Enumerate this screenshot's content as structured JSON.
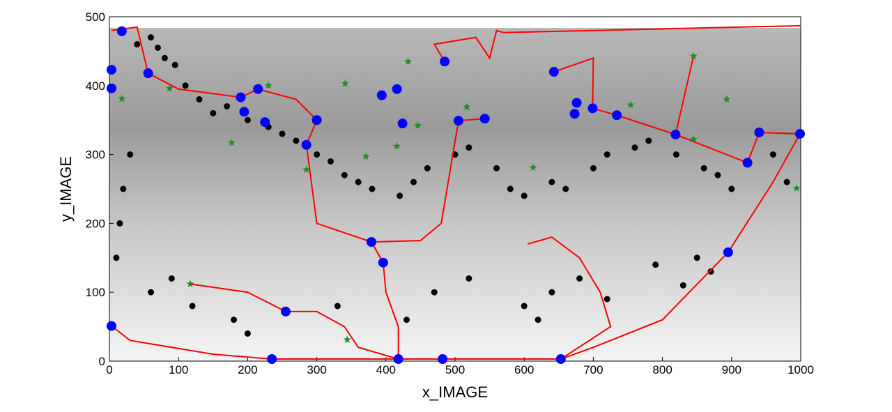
{
  "chart_data": {
    "type": "scatter",
    "xlabel": "x_IMAGE",
    "ylabel": "y_IMAGE",
    "xlim": [
      0,
      1000
    ],
    "ylim": [
      0,
      500
    ],
    "xticks": [
      0,
      100,
      200,
      300,
      400,
      500,
      600,
      700,
      800,
      900,
      1000
    ],
    "yticks": [
      0,
      100,
      200,
      300,
      400,
      500
    ],
    "series": [
      {
        "color": "#000000",
        "marker": "dot",
        "x": [
          40,
          60,
          70,
          80,
          95,
          110,
          130,
          150,
          170,
          200,
          230,
          250,
          270,
          300,
          320,
          340,
          360,
          380,
          420,
          440,
          460,
          500,
          520,
          560,
          580,
          600,
          640,
          660,
          700,
          720,
          760,
          780,
          820,
          860,
          880,
          900,
          960,
          980,
          30,
          20,
          15,
          10,
          60,
          90,
          120,
          180,
          200,
          330,
          430,
          470,
          520,
          600,
          620,
          640,
          680,
          720,
          790,
          830,
          850,
          870
        ],
        "y": [
          460,
          470,
          455,
          440,
          430,
          400,
          380,
          360,
          370,
          350,
          340,
          330,
          320,
          300,
          290,
          270,
          260,
          250,
          240,
          260,
          280,
          300,
          310,
          280,
          250,
          240,
          260,
          250,
          280,
          300,
          310,
          320,
          300,
          280,
          270,
          250,
          300,
          260,
          300,
          250,
          200,
          150,
          100,
          120,
          80,
          60,
          40,
          80,
          60,
          100,
          120,
          80,
          60,
          100,
          120,
          90,
          140,
          110,
          150,
          130
        ]
      },
      {
        "color": "#ff0000",
        "line": true,
        "x": [
          3,
          30,
          150,
          235,
          418,
          482,
          653,
          700,
          800,
          895,
          960,
          999
        ],
        "y": [
          51,
          30,
          10,
          3,
          3,
          3,
          3,
          20,
          60,
          158,
          260,
          330
        ]
      },
      {
        "color": "#ff0000",
        "line": true,
        "x": [
          117,
          200,
          255,
          300,
          340,
          360,
          418
        ],
        "y": [
          112,
          100,
          72,
          72,
          50,
          20,
          3
        ]
      },
      {
        "color": "#ff0000",
        "line": true,
        "x": [
          570,
          1000
        ],
        "y": [
          477,
          487
        ]
      },
      {
        "color": "#ff0000",
        "line": true,
        "x": [
          3,
          40,
          56,
          100,
          190,
          215,
          270,
          300,
          285,
          300,
          379,
          396,
          400,
          418,
          418
        ],
        "y": [
          480,
          485,
          418,
          395,
          383,
          395,
          380,
          350,
          314,
          200,
          173,
          143,
          100,
          50,
          3
        ]
      },
      {
        "color": "#ff0000",
        "line": true,
        "x": [
          379,
          450,
          480,
          505,
          543
        ],
        "y": [
          173,
          175,
          200,
          349,
          352
        ]
      },
      {
        "color": "#ff0000",
        "line": true,
        "x": [
          605,
          640,
          680,
          710,
          725,
          653
        ],
        "y": [
          170,
          180,
          150,
          100,
          50,
          3
        ]
      },
      {
        "color": "#ff0000",
        "line": true,
        "x": [
          485,
          470,
          530,
          550,
          560,
          570
        ],
        "y": [
          435,
          460,
          470,
          440,
          480,
          477
        ]
      },
      {
        "color": "#ff0000",
        "line": true,
        "x": [
          643,
          700,
          699,
          734,
          819,
          845
        ],
        "y": [
          420,
          440,
          367,
          357,
          329,
          443
        ]
      },
      {
        "color": "#ff0000",
        "line": true,
        "x": [
          819,
          923,
          940,
          999
        ],
        "y": [
          329,
          288,
          332,
          330
        ]
      },
      {
        "color": "#0000ff",
        "marker": "circle",
        "x": [
          18,
          3,
          3,
          56,
          190,
          215,
          195,
          225,
          300,
          285,
          394,
          416,
          424,
          485,
          505,
          543,
          643,
          676,
          673,
          699,
          734,
          819,
          940,
          923,
          999,
          895,
          379,
          396,
          255,
          3,
          235,
          418,
          482,
          653
        ],
        "y": [
          479,
          423,
          396,
          418,
          383,
          395,
          362,
          347,
          350,
          314,
          386,
          395,
          345,
          435,
          349,
          352,
          420,
          375,
          359,
          367,
          357,
          329,
          332,
          288,
          330,
          158,
          173,
          143,
          72,
          51,
          3,
          3,
          3,
          3
        ]
      },
      {
        "color": "#228b22",
        "marker": "star",
        "x": [
          117,
          432,
          446,
          416,
          371,
          285,
          177,
          230,
          87,
          18,
          341,
          517,
          613,
          754,
          845,
          893,
          845,
          994,
          344
        ],
        "y": [
          112,
          435,
          342,
          312,
          297,
          278,
          317,
          400,
          396,
          381,
          403,
          369,
          281,
          372,
          443,
          380,
          322,
          251,
          31
        ]
      }
    ]
  }
}
